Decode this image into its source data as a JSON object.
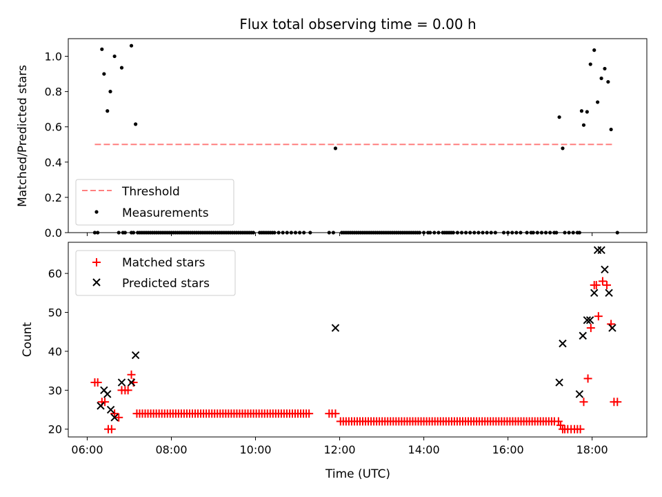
{
  "chart_data": [
    {
      "type": "scatter",
      "title": "Flux total observing time = 0.00 h",
      "xlabel": "",
      "ylabel": "Matched/Predicted stars",
      "xlim": [
        5.55,
        19.3
      ],
      "ylim": [
        0.0,
        1.1
      ],
      "yticks": [
        0.0,
        0.2,
        0.4,
        0.6,
        0.8,
        1.0
      ],
      "ytick_labels": [
        "0.0",
        "0.2",
        "0.4",
        "0.6",
        "0.8",
        "1.0"
      ],
      "xticks": [
        6,
        8,
        10,
        12,
        14,
        16,
        18
      ],
      "xtick_labels": [
        "",
        "",
        "",
        "",
        "",
        "",
        ""
      ],
      "legend": {
        "placement": "lower-left",
        "entries": [
          "Threshold",
          "Measurements"
        ]
      },
      "threshold": {
        "name": "Threshold",
        "y": 0.5,
        "x_start": 6.18,
        "x_end": 18.5,
        "color": "#ff7f7f"
      },
      "measurements": {
        "name": "Measurements",
        "color": "#000000",
        "x": [
          6.35,
          6.4,
          6.48,
          6.55,
          6.65,
          6.82,
          7.05,
          7.15,
          11.9,
          17.22,
          17.3,
          17.75,
          17.8,
          17.88,
          17.96,
          18.05,
          18.13,
          18.22,
          18.3,
          18.38,
          18.45
        ],
        "y": [
          1.04,
          0.9,
          0.69,
          0.8,
          1.0,
          0.935,
          1.06,
          0.615,
          0.478,
          0.655,
          0.478,
          0.69,
          0.61,
          0.685,
          0.955,
          1.035,
          0.74,
          0.875,
          0.93,
          0.855,
          0.585
        ]
      },
      "zero_measurements": {
        "color": "#000000",
        "x": [
          6.18,
          6.25,
          6.75,
          6.85,
          6.9,
          7.05,
          7.1,
          7.2,
          7.25,
          7.3,
          7.35,
          7.4,
          7.45,
          7.5,
          7.55,
          7.6,
          7.65,
          7.7,
          7.75,
          7.8,
          7.85,
          7.9,
          7.95,
          8.0,
          8.05,
          8.1,
          8.15,
          8.2,
          8.25,
          8.3,
          8.35,
          8.4,
          8.45,
          8.5,
          8.55,
          8.6,
          8.65,
          8.7,
          8.75,
          8.8,
          8.85,
          8.9,
          8.95,
          9.0,
          9.05,
          9.1,
          9.15,
          9.2,
          9.25,
          9.3,
          9.35,
          9.4,
          9.45,
          9.5,
          9.55,
          9.6,
          9.65,
          9.7,
          9.75,
          9.8,
          9.85,
          9.9,
          9.95,
          10.1,
          10.15,
          10.2,
          10.25,
          10.3,
          10.35,
          10.4,
          10.45,
          10.55,
          10.65,
          10.75,
          10.85,
          10.95,
          11.05,
          11.15,
          11.3,
          11.75,
          11.85,
          12.05,
          12.1,
          12.15,
          12.2,
          12.25,
          12.3,
          12.35,
          12.4,
          12.45,
          12.5,
          12.55,
          12.6,
          12.65,
          12.7,
          12.75,
          12.8,
          12.85,
          12.9,
          12.95,
          13.0,
          13.05,
          13.1,
          13.15,
          13.2,
          13.25,
          13.3,
          13.35,
          13.4,
          13.45,
          13.5,
          13.55,
          13.6,
          13.65,
          13.7,
          13.75,
          13.8,
          13.85,
          13.9,
          14.0,
          14.1,
          14.15,
          14.25,
          14.35,
          14.45,
          14.5,
          14.55,
          14.6,
          14.65,
          14.7,
          14.8,
          14.9,
          15.0,
          15.1,
          15.2,
          15.3,
          15.4,
          15.5,
          15.6,
          15.7,
          15.9,
          16.0,
          16.1,
          16.2,
          16.3,
          16.45,
          16.55,
          16.6,
          16.7,
          16.8,
          16.9,
          17.0,
          17.1,
          17.15,
          17.35,
          17.45,
          17.55,
          17.65,
          17.7,
          18.6
        ],
        "y_value": 0
      }
    },
    {
      "type": "scatter",
      "title": "",
      "xlabel": "Time (UTC)",
      "ylabel": "Count",
      "xlim": [
        5.55,
        19.3
      ],
      "ylim": [
        18,
        68
      ],
      "yticks": [
        20,
        30,
        40,
        50,
        60
      ],
      "ytick_labels": [
        "20",
        "30",
        "40",
        "50",
        "60"
      ],
      "xticks": [
        6,
        8,
        10,
        12,
        14,
        16,
        18
      ],
      "xtick_labels": [
        "06:00",
        "08:00",
        "10:00",
        "12:00",
        "14:00",
        "16:00",
        "18:00"
      ],
      "legend": {
        "placement": "upper-left",
        "entries": [
          "Matched stars",
          "Predicted stars"
        ]
      },
      "series": [
        {
          "name": "Matched stars",
          "marker": "plus",
          "color": "#ff0000",
          "points": [
            [
              6.18,
              32
            ],
            [
              6.25,
              32
            ],
            [
              6.35,
              27
            ],
            [
              6.42,
              27
            ],
            [
              6.5,
              20
            ],
            [
              6.58,
              20
            ],
            [
              6.65,
              24
            ],
            [
              6.75,
              23
            ],
            [
              6.82,
              30
            ],
            [
              6.9,
              30
            ],
            [
              6.97,
              30
            ],
            [
              7.05,
              34
            ],
            [
              7.1,
              32
            ],
            [
              11.75,
              24
            ],
            [
              11.82,
              24
            ],
            [
              11.9,
              24
            ],
            [
              17.2,
              22
            ],
            [
              17.25,
              21
            ],
            [
              17.3,
              20
            ],
            [
              17.35,
              20
            ],
            [
              17.42,
              20
            ],
            [
              17.5,
              20
            ],
            [
              17.58,
              20
            ],
            [
              17.65,
              20
            ],
            [
              17.72,
              20
            ],
            [
              17.8,
              27
            ],
            [
              17.9,
              33
            ],
            [
              17.97,
              46
            ],
            [
              18.05,
              57
            ],
            [
              18.1,
              57
            ],
            [
              18.15,
              49
            ],
            [
              18.25,
              58
            ],
            [
              18.35,
              57
            ],
            [
              18.45,
              47
            ],
            [
              18.52,
              27
            ],
            [
              18.6,
              27
            ]
          ],
          "flat_segments": [
            {
              "y": 24,
              "x_start": 7.18,
              "x_end": 11.3,
              "step": 0.066
            },
            {
              "y": 22,
              "x_start": 12.02,
              "x_end": 17.15,
              "step": 0.066
            }
          ]
        },
        {
          "name": "Predicted stars",
          "marker": "x",
          "color": "#000000",
          "points": [
            [
              6.32,
              26
            ],
            [
              6.4,
              30
            ],
            [
              6.48,
              29
            ],
            [
              6.56,
              25
            ],
            [
              6.65,
              23
            ],
            [
              6.82,
              32
            ],
            [
              7.05,
              32
            ],
            [
              7.15,
              39
            ],
            [
              11.9,
              46
            ],
            [
              17.22,
              32
            ],
            [
              17.3,
              42
            ],
            [
              17.7,
              29
            ],
            [
              17.78,
              44
            ],
            [
              17.88,
              48
            ],
            [
              17.95,
              48
            ],
            [
              18.05,
              55
            ],
            [
              18.13,
              66
            ],
            [
              18.22,
              66
            ],
            [
              18.3,
              61
            ],
            [
              18.4,
              55
            ],
            [
              18.48,
              46
            ]
          ]
        }
      ]
    }
  ]
}
